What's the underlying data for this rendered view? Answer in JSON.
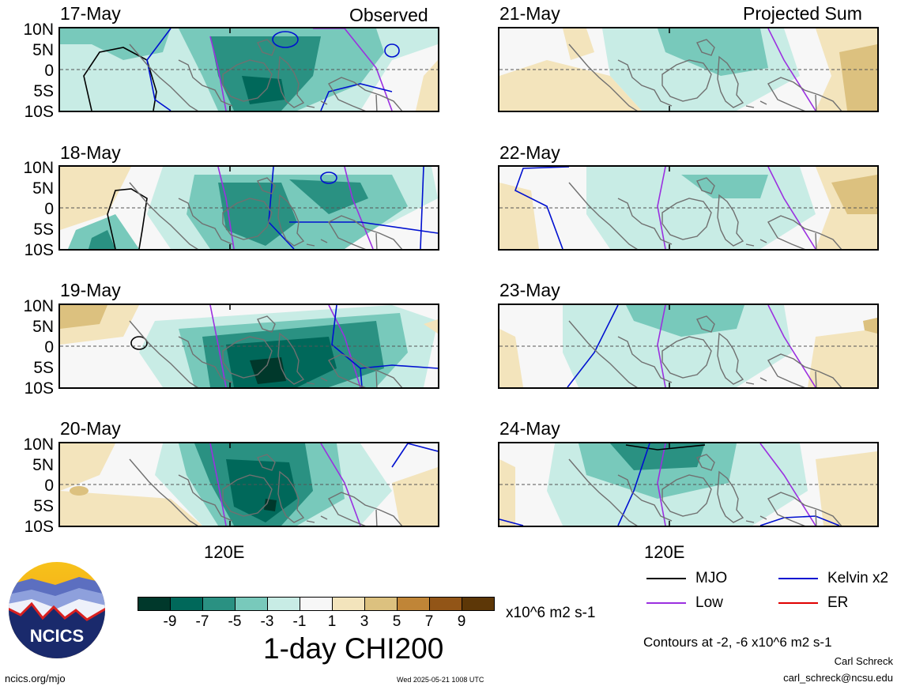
{
  "header": {
    "left_title": "Observed",
    "right_title": "Projected Sum"
  },
  "lat_labels": [
    "10N",
    "5N",
    "0",
    "5S",
    "10S"
  ],
  "lon_label": "120E",
  "observed_dates": [
    "17-May",
    "18-May",
    "19-May",
    "20-May"
  ],
  "projected_dates": [
    "21-May",
    "22-May",
    "23-May",
    "24-May"
  ],
  "colorbar": {
    "colors": [
      "#00382b",
      "#00685a",
      "#2a9182",
      "#78c9bb",
      "#c8ece5",
      "#f7f7f7",
      "#f3e4bc",
      "#dcc17f",
      "#c08537",
      "#925517",
      "#5d3707"
    ],
    "labels": [
      "-9",
      "-7",
      "-5",
      "-3",
      "-1",
      "1",
      "3",
      "5",
      "7",
      "9"
    ],
    "units": "x10^6 m2 s-1",
    "title": "1-day CHI200"
  },
  "legend": {
    "items": [
      {
        "label": "MJO",
        "color": "#000000"
      },
      {
        "label": "Kelvin x2",
        "color": "#0010d0"
      },
      {
        "label": "Low",
        "color": "#9b30e0"
      },
      {
        "label": "ER",
        "color": "#e00000"
      }
    ],
    "contours_note": "Contours at -2, -6 x10^6 m2 s-1"
  },
  "credits": {
    "author": "Carl Schreck",
    "email": "carl_schreck@ncsu.edu",
    "site": "ncics.org/mjo",
    "timestamp": "Wed 2025-05-21 1008 UTC",
    "logo_text": "NCICS"
  }
}
